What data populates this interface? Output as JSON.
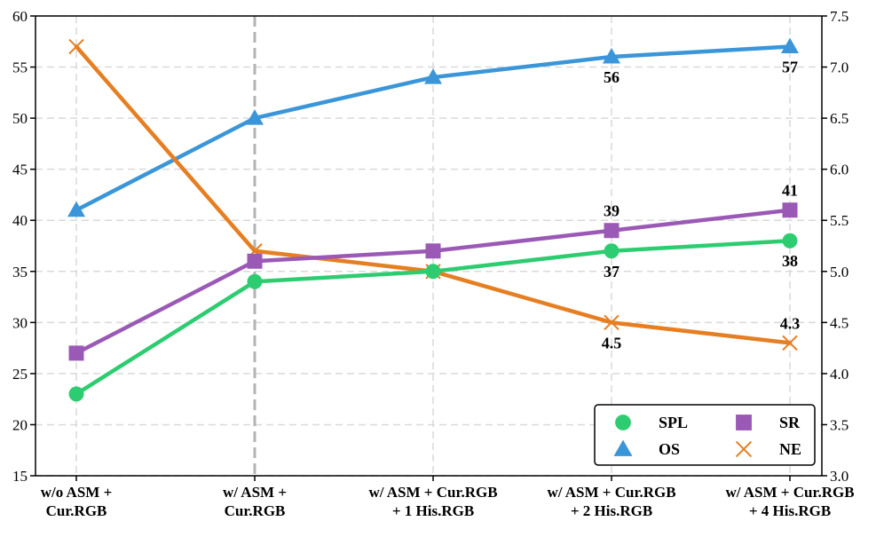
{
  "chart_data": {
    "type": "line",
    "categories": [
      [
        "w/o ASM +",
        "Cur.RGB"
      ],
      [
        "w/ ASM +",
        "Cur.RGB"
      ],
      [
        "w/ ASM + Cur.RGB",
        "+ 1 His.RGB"
      ],
      [
        "w/ ASM + Cur.RGB",
        "+ 2 His.RGB"
      ],
      [
        "w/ ASM + Cur.RGB",
        "+ 4 His.RGB"
      ]
    ],
    "left_axis": {
      "ylim": [
        15,
        60
      ],
      "ticks": [
        15,
        20,
        25,
        30,
        35,
        40,
        45,
        50,
        55,
        60
      ]
    },
    "right_axis": {
      "ylim": [
        3.0,
        7.5
      ],
      "ticks": [
        "3.0",
        "3.5",
        "4.0",
        "4.5",
        "5.0",
        "5.5",
        "6.0",
        "6.5",
        "7.0",
        "7.5"
      ]
    },
    "highlight_category_index": 1,
    "series": [
      {
        "name": "OS",
        "axis": "left",
        "marker": "triangle",
        "color": "#3a96d8",
        "values": [
          41,
          50,
          54,
          56,
          57
        ],
        "labels": [
          {
            "index": 3,
            "text": "56",
            "position": "below"
          },
          {
            "index": 4,
            "text": "57",
            "position": "below"
          }
        ]
      },
      {
        "name": "NE",
        "axis": "right",
        "marker": "x",
        "color": "#e67e22",
        "values": [
          7.2,
          5.2,
          5.0,
          4.5,
          4.3
        ],
        "labels": [
          {
            "index": 3,
            "text": "4.5",
            "position": "below"
          },
          {
            "index": 4,
            "text": "4.3",
            "position": "above"
          }
        ]
      },
      {
        "name": "SR",
        "axis": "left",
        "marker": "square",
        "color": "#9b59b6",
        "values": [
          27,
          36,
          37,
          39,
          41
        ],
        "labels": [
          {
            "index": 3,
            "text": "39",
            "position": "above"
          },
          {
            "index": 4,
            "text": "41",
            "position": "above"
          }
        ]
      },
      {
        "name": "SPL",
        "axis": "left",
        "marker": "circle",
        "color": "#2ecc71",
        "values": [
          23,
          34,
          35,
          37,
          38
        ],
        "labels": [
          {
            "index": 3,
            "text": "37",
            "position": "below"
          },
          {
            "index": 4,
            "text": "38",
            "position": "below"
          }
        ]
      }
    ],
    "legend": {
      "position": "bottom-right",
      "entries": [
        {
          "name": "SPL",
          "marker": "circle",
          "color": "#2ecc71"
        },
        {
          "name": "SR",
          "marker": "square",
          "color": "#9b59b6"
        },
        {
          "name": "OS",
          "marker": "triangle",
          "color": "#3a96d8"
        },
        {
          "name": "NE",
          "marker": "x",
          "color": "#e67e22"
        }
      ]
    },
    "grid": true
  }
}
